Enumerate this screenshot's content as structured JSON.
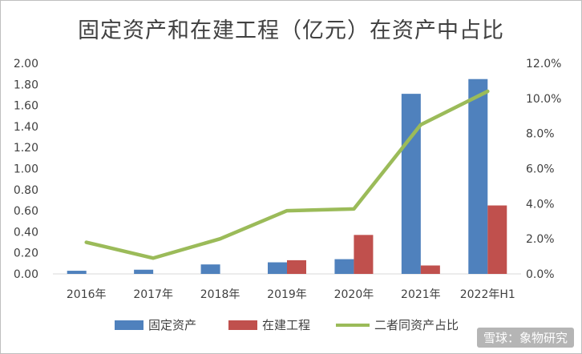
{
  "chart_data": {
    "type": "bar",
    "title": "固定资产和在建工程（亿元）在资产中占比",
    "categories": [
      "2016年",
      "2017年",
      "2018年",
      "2019年",
      "2020年",
      "2021年",
      "2022年H1"
    ],
    "series": [
      {
        "name": "固定资产",
        "type": "bar",
        "axis": "left",
        "color": "#4f81bd",
        "values": [
          0.03,
          0.04,
          0.09,
          0.11,
          0.14,
          1.71,
          1.85
        ]
      },
      {
        "name": "在建工程",
        "type": "bar",
        "axis": "left",
        "color": "#c0504d",
        "values": [
          0.0,
          0.0,
          0.0,
          0.13,
          0.37,
          0.08,
          0.65
        ]
      },
      {
        "name": "二者同资产占比",
        "type": "line",
        "axis": "right",
        "color": "#9bbb59",
        "values": [
          1.8,
          0.9,
          2.0,
          3.6,
          3.7,
          8.5,
          10.4
        ]
      }
    ],
    "ylim": [
      0,
      2.0
    ],
    "yticks": [
      "0.00",
      "0.20",
      "0.40",
      "0.60",
      "0.80",
      "1.00",
      "1.20",
      "1.40",
      "1.60",
      "1.80",
      "2.00"
    ],
    "y2lim": [
      0,
      12
    ],
    "y2ticks": [
      "0.0%",
      "2.0%",
      "4.0%",
      "6.0%",
      "8.0%",
      "10.0%",
      "12.0%"
    ],
    "legend_position": "bottom",
    "grid": false
  },
  "watermark": "雪球：象物研究"
}
